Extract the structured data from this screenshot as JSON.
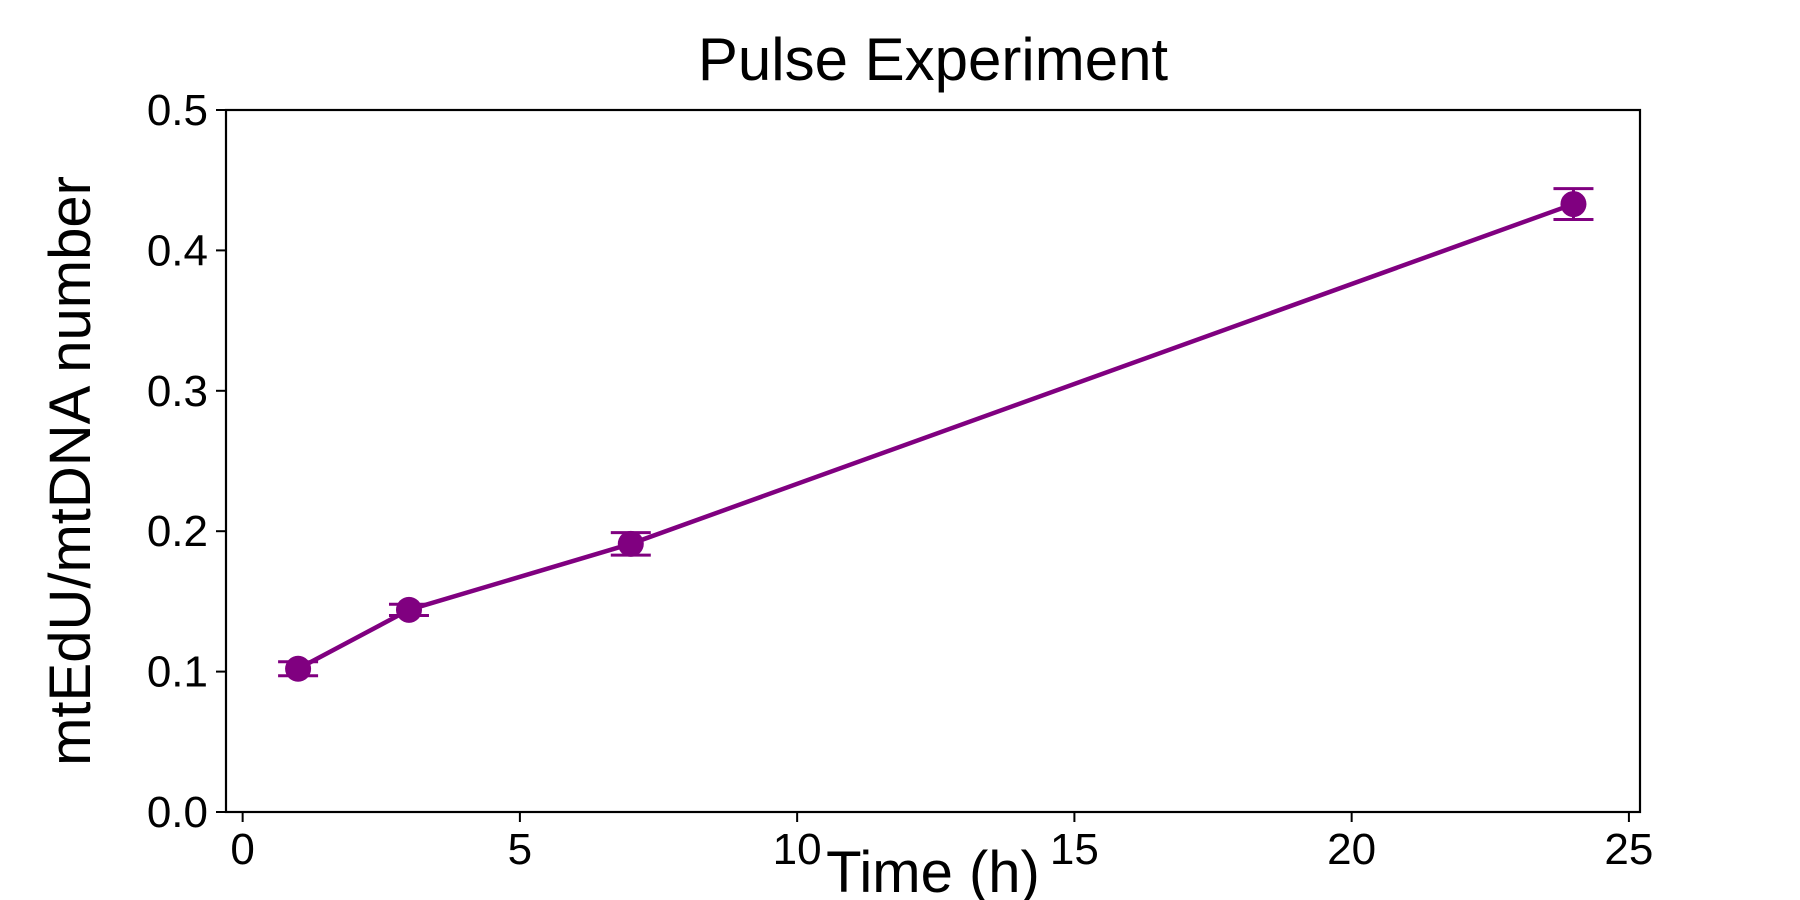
{
  "chart_data": {
    "type": "line",
    "title": "Pulse Experiment",
    "xlabel": "Time (h)",
    "ylabel": "mtEdU/mtDNA number",
    "xlim": [
      -0.3,
      25.2
    ],
    "ylim": [
      0.0,
      0.5
    ],
    "xticks": [
      0,
      5,
      10,
      15,
      20,
      25
    ],
    "yticks": [
      0.0,
      0.1,
      0.2,
      0.3,
      0.4,
      0.5
    ],
    "xtick_labels": [
      "0",
      "5",
      "10",
      "15",
      "20",
      "25"
    ],
    "ytick_labels": [
      "0.0",
      "0.1",
      "0.2",
      "0.3",
      "0.4",
      "0.5"
    ],
    "grid": false,
    "series": [
      {
        "color": "#800080",
        "marker": "circle",
        "x": [
          1,
          3,
          7,
          24
        ],
        "y": [
          0.102,
          0.144,
          0.191,
          0.433
        ],
        "yerr": [
          0.005,
          0.004,
          0.008,
          0.011
        ]
      }
    ]
  }
}
